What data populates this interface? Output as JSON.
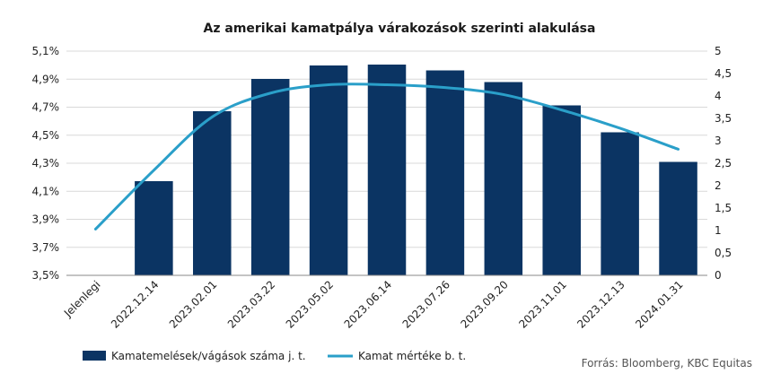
{
  "chart_data": {
    "type": "bar+line",
    "title": "Az amerikai kamatpálya várakozások szerinti alakulása",
    "categories": [
      "Jelenlegi",
      "2022.12.14",
      "2023.02.01",
      "2023.03.22",
      "2023.05.02",
      "2023.06.14",
      "2023.07.26",
      "2023.09.20",
      "2023.11.01",
      "2023.12.13",
      "2024.01.31"
    ],
    "series": [
      {
        "name": "Kamatemelések/vágások száma j. t.",
        "kind": "bar",
        "axis": "right",
        "color": "#0b3463",
        "values": [
          0,
          2.1,
          3.66,
          4.38,
          4.68,
          4.7,
          4.57,
          4.31,
          3.79,
          3.19,
          2.53
        ]
      },
      {
        "name": "Kamat mértéke b. t.",
        "kind": "line",
        "axis": "left",
        "color": "#2a9fc9",
        "values": [
          3.83,
          4.25,
          4.63,
          4.8,
          4.86,
          4.86,
          4.84,
          4.79,
          4.68,
          4.55,
          4.4
        ]
      }
    ],
    "y_left": {
      "min": 3.5,
      "max": 5.1,
      "ticks": [
        "3,5%",
        "3,7%",
        "3,9%",
        "4,1%",
        "4,3%",
        "4,5%",
        "4,7%",
        "4,9%",
        "5,1%"
      ]
    },
    "y_right": {
      "min": 0,
      "max": 5,
      "ticks": [
        "0",
        "0,5",
        "1",
        "1,5",
        "2",
        "2,5",
        "3",
        "3,5",
        "4",
        "4,5",
        "5"
      ]
    },
    "grid": true,
    "legend_position": "bottom-left"
  },
  "source": "Forrás: Bloomberg, KBC Equitas"
}
